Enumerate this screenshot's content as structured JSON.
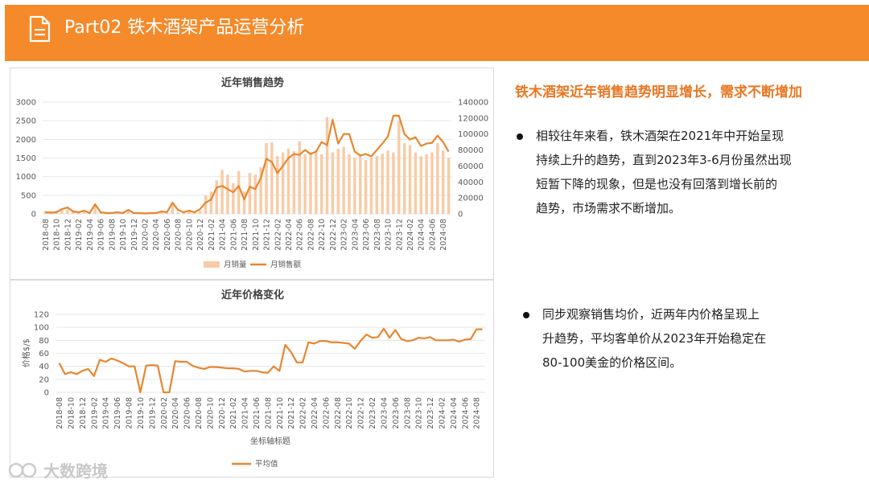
{
  "header": {
    "title": "Part02 铁木酒架产品运营分析",
    "icon": "document-icon"
  },
  "heading": "铁木酒架近年销售趋势明显增长，需求不断增加",
  "bullets": [
    "相较往年来看，铁木酒架在2021年中开始呈现\n持续上升的趋势，直到2023年3-6月份虽然出现\n短暂下降的现象，但是也没有回落到增长前的\n趋势，市场需求不断增加。",
    "同步观察销售均价，近两年内价格呈现上\n升趋势，平均客单价从2023年开始稳定在\n80-100美金的价格区间。"
  ],
  "watermark": "大数跨境",
  "colors": {
    "accent": "#F58A2A",
    "bar": "#F8CBA6",
    "line": "#E8862F",
    "heading": "#E87722"
  },
  "chart_data": [
    {
      "type": "bar",
      "title": "近年销售趋势",
      "x": [
        "2018-08",
        "2018-09",
        "2018-10",
        "2018-11",
        "2018-12",
        "2019-01",
        "2019-02",
        "2019-03",
        "2019-04",
        "2019-05",
        "2019-06",
        "2019-07",
        "2019-08",
        "2019-09",
        "2019-10",
        "2019-11",
        "2019-12",
        "2020-01",
        "2020-02",
        "2020-03",
        "2020-04",
        "2020-05",
        "2020-06",
        "2020-07",
        "2020-08",
        "2020-09",
        "2020-10",
        "2020-11",
        "2020-12",
        "2021-01",
        "2021-02",
        "2021-03",
        "2021-04",
        "2021-05",
        "2021-06",
        "2021-07",
        "2021-08",
        "2021-09",
        "2021-10",
        "2021-11",
        "2021-12",
        "2022-01",
        "2022-02",
        "2022-03",
        "2022-04",
        "2022-05",
        "2022-06",
        "2022-07",
        "2022-08",
        "2022-09",
        "2022-10",
        "2022-11",
        "2022-12",
        "2023-01",
        "2023-02",
        "2023-03",
        "2023-04",
        "2023-05",
        "2023-06",
        "2023-07",
        "2023-08",
        "2023-09",
        "2023-10",
        "2023-11",
        "2023-12",
        "2024-01",
        "2024-02",
        "2024-03",
        "2024-04",
        "2024-05",
        "2024-06",
        "2024-07",
        "2024-08",
        "2024-09"
      ],
      "x_tick_labels": [
        "2018-08",
        "2018-10",
        "2018-12",
        "2019-02",
        "2019-04",
        "2019-06",
        "2019-08",
        "2019-10",
        "2019-12",
        "2020-02",
        "2020-04",
        "2020-06",
        "2020-08",
        "2020-10",
        "2020-12",
        "2021-02",
        "2021-04",
        "2021-06",
        "2021-08",
        "2021-10",
        "2021-12",
        "2022-02",
        "2022-04",
        "2022-06",
        "2022-08",
        "2022-10",
        "2022-12",
        "2023-02",
        "2023-04",
        "2023-06",
        "2023-08",
        "2023-10",
        "2023-12",
        "2024-02",
        "2024-04",
        "2024-06",
        "2024-08"
      ],
      "series": [
        {
          "name": "月销量",
          "type": "bar",
          "axis": "left",
          "values": [
            80,
            70,
            90,
            100,
            120,
            60,
            40,
            50,
            30,
            260,
            40,
            30,
            20,
            40,
            20,
            90,
            30,
            20,
            15,
            10,
            20,
            50,
            30,
            260,
            40,
            30,
            70,
            40,
            80,
            490,
            600,
            900,
            1180,
            1050,
            820,
            1150,
            600,
            1100,
            1050,
            1250,
            1900,
            1920,
            1550,
            1650,
            1750,
            1680,
            1950,
            1600,
            1650,
            1700,
            1600,
            2600,
            1650,
            1750,
            1800,
            1600,
            1500,
            1550,
            1450,
            1500,
            1550,
            1620,
            1700,
            1650,
            2500,
            1900,
            1850,
            1650,
            1550,
            1600,
            1650,
            1900,
            1700,
            1500
          ]
        },
        {
          "name": "月销售额",
          "type": "line",
          "axis": "right",
          "values": [
            2000,
            1500,
            2000,
            6000,
            8000,
            3000,
            2000,
            4000,
            1000,
            12000,
            2000,
            1000,
            1000,
            2000,
            1000,
            5000,
            1000,
            1000,
            500,
            1000,
            1000,
            3000,
            2000,
            14000,
            5000,
            2000,
            4000,
            2000,
            6000,
            14000,
            18000,
            33000,
            35000,
            31000,
            27000,
            35000,
            18000,
            34000,
            31000,
            45000,
            69000,
            65000,
            51000,
            60000,
            70000,
            75000,
            74000,
            80000,
            75000,
            78000,
            90000,
            86000,
            118000,
            88000,
            100000,
            100000,
            78000,
            73000,
            75000,
            72000,
            80000,
            88000,
            97000,
            123000,
            123000,
            100000,
            93000,
            96000,
            85000,
            88000,
            89000,
            98000,
            90000,
            78000
          ]
        }
      ],
      "ylim_left": [
        0,
        3000
      ],
      "yticks_left": [
        0,
        500,
        1000,
        1500,
        2000,
        2500,
        3000
      ],
      "ylim_right": [
        0,
        140000
      ],
      "yticks_right": [
        0,
        20000,
        40000,
        60000,
        80000,
        100000,
        120000,
        140000
      ],
      "legend": [
        "月销量",
        "月销售额"
      ],
      "legend_position": "bottom",
      "grid": true
    },
    {
      "type": "line",
      "title": "近年价格变化",
      "ylabel": "价格$/$",
      "xlabel": "坐标轴标题",
      "x": [
        "2018-08",
        "2018-09",
        "2018-10",
        "2018-11",
        "2018-12",
        "2019-01",
        "2019-02",
        "2019-03",
        "2019-04",
        "2019-05",
        "2019-06",
        "2019-07",
        "2019-08",
        "2019-09",
        "2019-10",
        "2019-11",
        "2019-12",
        "2020-01",
        "2020-02",
        "2020-03",
        "2020-04",
        "2020-05",
        "2020-06",
        "2020-07",
        "2020-08",
        "2020-09",
        "2020-10",
        "2020-11",
        "2020-12",
        "2021-01",
        "2021-02",
        "2021-03",
        "2021-04",
        "2021-05",
        "2021-06",
        "2021-07",
        "2021-08",
        "2021-09",
        "2021-10",
        "2021-11",
        "2021-12",
        "2022-01",
        "2022-02",
        "2022-03",
        "2022-04",
        "2022-05",
        "2022-06",
        "2022-07",
        "2022-08",
        "2022-09",
        "2022-10",
        "2022-11",
        "2022-12",
        "2023-01",
        "2023-02",
        "2023-03",
        "2023-04",
        "2023-05",
        "2023-06",
        "2023-07",
        "2023-08",
        "2023-09",
        "2023-10",
        "2023-11",
        "2023-12",
        "2024-01",
        "2024-02",
        "2024-03",
        "2024-04",
        "2024-05",
        "2024-06",
        "2024-07",
        "2024-08",
        "2024-09"
      ],
      "x_tick_labels": [
        "2018-08",
        "2018-10",
        "2018-12",
        "2019-02",
        "2019-04",
        "2019-06",
        "2019-08",
        "2019-10",
        "2019-12",
        "2020-02",
        "2020-04",
        "2020-06",
        "2020-08",
        "2020-10",
        "2020-12",
        "2021-02",
        "2021-04",
        "2021-06",
        "2021-08",
        "2021-10",
        "2021-12",
        "2022-02",
        "2022-04",
        "2022-06",
        "2022-08",
        "2022-10",
        "2022-12",
        "2023-02",
        "2023-04",
        "2023-06",
        "2023-08",
        "2023-10",
        "2023-12",
        "2024-02",
        "2024-04",
        "2024-06",
        "2024-08"
      ],
      "series": [
        {
          "name": "平均值",
          "values": [
            45,
            28,
            31,
            28,
            33,
            36,
            25,
            50,
            47,
            52,
            49,
            45,
            40,
            40,
            0,
            41,
            42,
            41,
            0,
            0,
            48,
            47,
            47,
            41,
            38,
            36,
            39,
            39,
            38,
            37,
            37,
            36,
            32,
            33,
            33,
            31,
            30,
            40,
            33,
            73,
            62,
            46,
            46,
            77,
            75,
            79,
            79,
            77,
            77,
            76,
            75,
            67,
            79,
            89,
            84,
            85,
            98,
            84,
            96,
            82,
            79,
            80,
            84,
            83,
            85,
            80,
            80,
            80,
            81,
            78,
            81,
            82,
            97,
            97
          ]
        }
      ],
      "ylim": [
        0,
        120
      ],
      "yticks": [
        0,
        20,
        40,
        60,
        80,
        100,
        120
      ],
      "legend": [
        "平均值"
      ],
      "legend_position": "bottom",
      "grid": true
    }
  ]
}
